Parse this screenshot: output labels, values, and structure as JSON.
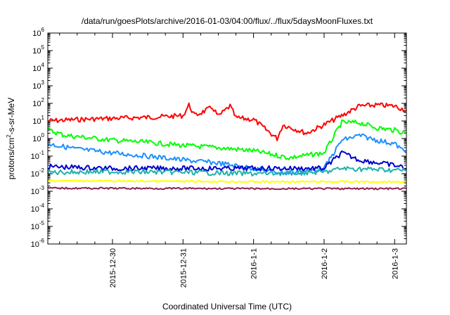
{
  "chart_data": {
    "type": "line",
    "title": "/data/run/goesPlots/archive/2016-01-03/04:00/flux/../flux/5daysMoonFluxes.txt",
    "xlabel": "Coordinated Universal Time (UTC)",
    "ylabel": "protons/cm²-s-sr-MeV",
    "yscale": "log",
    "ylim": [
      1e-06,
      1000000.0
    ],
    "xlim": [
      "2015-12-29T02:00",
      "2016-01-03T04:00"
    ],
    "grid": false,
    "y_ticks": [
      {
        "value": 1e-06,
        "base": "10",
        "exp": "-6"
      },
      {
        "value": 1e-05,
        "base": "10",
        "exp": "-5"
      },
      {
        "value": 0.0001,
        "base": "10",
        "exp": "-4"
      },
      {
        "value": 0.001,
        "base": "10",
        "exp": "-3"
      },
      {
        "value": 0.01,
        "base": "10",
        "exp": "-2"
      },
      {
        "value": 0.1,
        "base": "10",
        "exp": "-1"
      },
      {
        "value": 1,
        "base": "10",
        "exp": "0"
      },
      {
        "value": 10,
        "base": "10",
        "exp": "1"
      },
      {
        "value": 100,
        "base": "10",
        "exp": "2"
      },
      {
        "value": 1000,
        "base": "10",
        "exp": "3"
      },
      {
        "value": 10000,
        "base": "10",
        "exp": "4"
      },
      {
        "value": 100000,
        "base": "10",
        "exp": "5"
      },
      {
        "value": 1000000,
        "base": "10",
        "exp": "6"
      }
    ],
    "x_ticks": [
      {
        "value": "2015-12-30",
        "label": "2015-12-30"
      },
      {
        "value": "2015-12-31",
        "label": "2015-12-31"
      },
      {
        "value": "2016-01-01",
        "label": "2016-1-1"
      },
      {
        "value": "2016-01-02",
        "label": "2016-1-2"
      },
      {
        "value": "2016-01-03",
        "label": "2016-1-3"
      }
    ],
    "series": [
      {
        "color": "#ff0000",
        "x": [
          "2015-12-29T02:00",
          "2015-12-29T12:00",
          "2015-12-30T00:00",
          "2015-12-30T12:00",
          "2015-12-31T00:00",
          "2015-12-31T02:00",
          "2015-12-31T04:00",
          "2015-12-31T10:00",
          "2015-12-31T12:00",
          "2015-12-31T16:00",
          "2015-12-31T18:00",
          "2016-01-01T00:00",
          "2016-01-01T08:00",
          "2016-01-01T10:00",
          "2016-01-01T18:00",
          "2016-01-02T00:00",
          "2016-01-02T06:00",
          "2016-01-02T12:00",
          "2016-01-02T18:00",
          "2016-01-03T00:00",
          "2016-01-03T04:00"
        ],
        "y": [
          10,
          12,
          14,
          16,
          20,
          80,
          20,
          60,
          18,
          70,
          15,
          12,
          1,
          6,
          2,
          6,
          20,
          70,
          80,
          70,
          40
        ]
      },
      {
        "color": "#00ff00",
        "x": [
          "2015-12-29T02:00",
          "2015-12-29T08:00",
          "2015-12-30T00:00",
          "2015-12-30T12:00",
          "2015-12-31T00:00",
          "2015-12-31T12:00",
          "2016-01-01T00:00",
          "2016-01-01T12:00",
          "2016-01-02T00:00",
          "2016-01-02T06:00",
          "2016-01-02T12:00",
          "2016-01-02T18:00",
          "2016-01-03T00:00",
          "2016-01-03T04:00"
        ],
        "y": [
          3,
          1.5,
          0.8,
          0.6,
          0.4,
          0.3,
          0.2,
          0.08,
          0.15,
          8,
          8,
          4,
          3,
          2
        ]
      },
      {
        "color": "#1e90ff",
        "x": [
          "2015-12-29T02:00",
          "2015-12-29T12:00",
          "2015-12-30T00:00",
          "2015-12-30T12:00",
          "2015-12-31T00:00",
          "2015-12-31T12:00",
          "2016-01-01T00:00",
          "2016-01-01T12:00",
          "2016-01-02T00:00",
          "2016-01-02T06:00",
          "2016-01-02T12:00",
          "2016-01-02T18:00",
          "2016-01-03T00:00",
          "2016-01-03T04:00"
        ],
        "y": [
          0.5,
          0.25,
          0.15,
          0.1,
          0.06,
          0.04,
          0.02,
          0.01,
          0.02,
          0.8,
          1.5,
          0.8,
          0.5,
          0.15
        ]
      },
      {
        "color": "#0000cd",
        "x": [
          "2015-12-29T02:00",
          "2015-12-30T00:00",
          "2015-12-31T00:00",
          "2016-01-01T00:00",
          "2016-01-02T00:00",
          "2016-01-02T06:00",
          "2016-01-02T12:00",
          "2016-01-03T00:00",
          "2016-01-03T04:00"
        ],
        "y": [
          0.025,
          0.02,
          0.02,
          0.02,
          0.02,
          0.15,
          0.06,
          0.03,
          0.02
        ]
      },
      {
        "color": "#20b2aa",
        "x": [
          "2015-12-29T02:00",
          "2015-12-30T00:00",
          "2015-12-31T00:00",
          "2016-01-01T00:00",
          "2016-01-02T00:00",
          "2016-01-02T06:00",
          "2016-01-03T00:00",
          "2016-01-03T04:00"
        ],
        "y": [
          0.012,
          0.013,
          0.012,
          0.01,
          0.012,
          0.02,
          0.016,
          0.015
        ]
      },
      {
        "color": "#ffff00",
        "x": [
          "2015-12-29T02:00",
          "2016-01-01T00:00",
          "2016-01-03T04:00"
        ],
        "y": [
          0.004,
          0.0035,
          0.0035
        ]
      },
      {
        "color": "#8b2252",
        "x": [
          "2015-12-29T02:00",
          "2016-01-01T00:00",
          "2016-01-03T04:00"
        ],
        "y": [
          0.0015,
          0.0014,
          0.0014
        ]
      }
    ]
  }
}
